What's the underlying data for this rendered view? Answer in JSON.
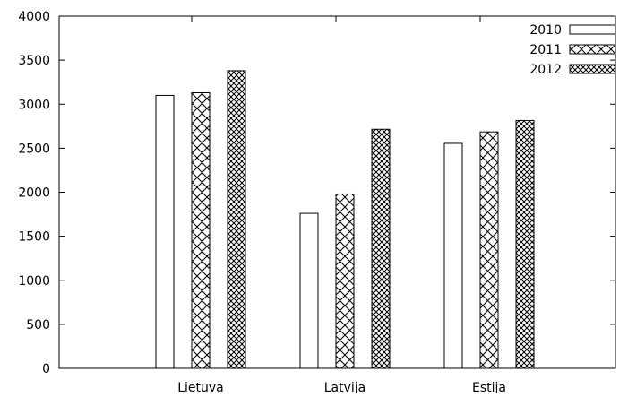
{
  "chart_data": {
    "type": "bar",
    "title": "",
    "xlabel": "",
    "ylabel": "",
    "categories": [
      "Lietuva",
      "Latvija",
      "Estija"
    ],
    "series": [
      {
        "name": "2010",
        "values": [
          3100,
          1760,
          2555
        ],
        "pattern": "none"
      },
      {
        "name": "2011",
        "values": [
          3130,
          1980,
          2685
        ],
        "pattern": "crosshatch-wide"
      },
      {
        "name": "2012",
        "values": [
          3380,
          2715,
          2815
        ],
        "pattern": "crosshatch-dense"
      }
    ],
    "ylim": [
      0,
      4000
    ],
    "yticks": [
      0,
      500,
      1000,
      1500,
      2000,
      2500,
      3000,
      3500,
      4000
    ],
    "grid": false,
    "legend_position": "top-right",
    "colors": {
      "stroke": "#000000",
      "fill": "#ffffff"
    }
  }
}
